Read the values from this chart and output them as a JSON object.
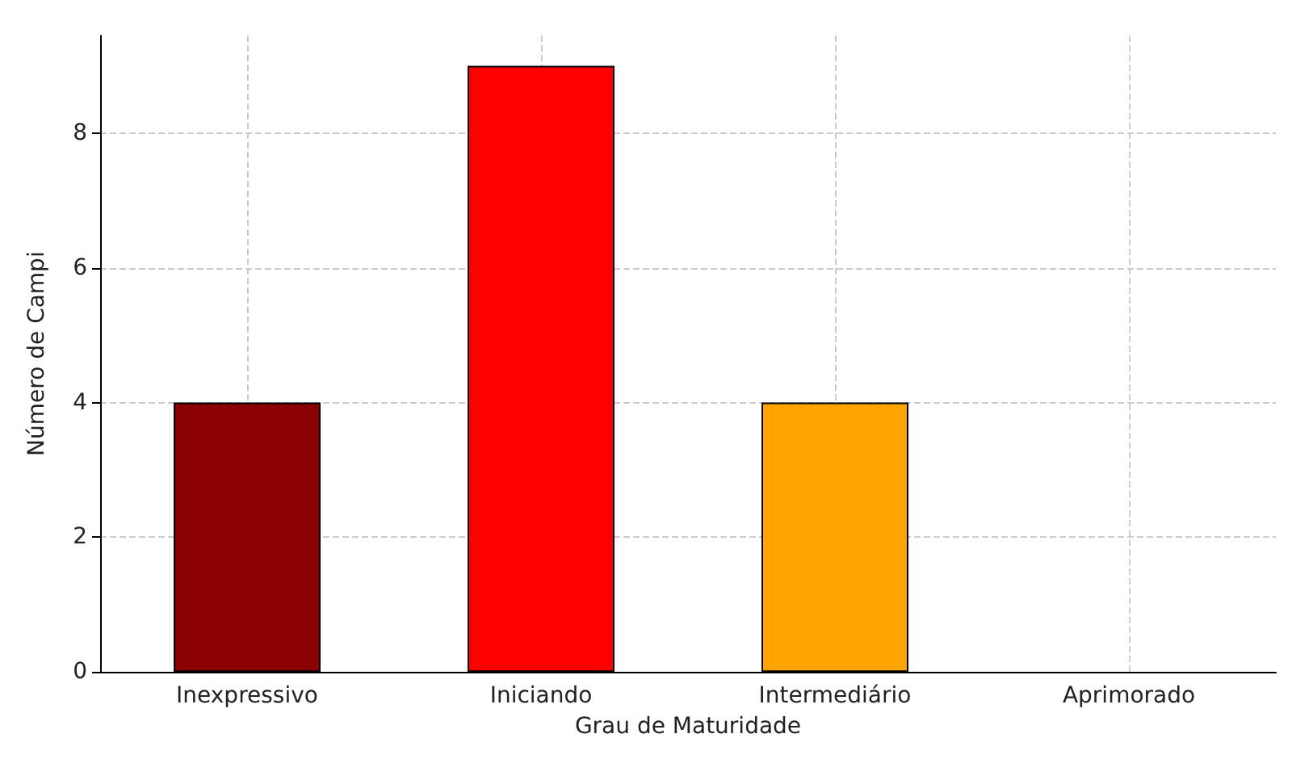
{
  "chart_data": {
    "type": "bar",
    "xlabel": "Grau de Maturidade",
    "ylabel": "Número de Campi",
    "categories": [
      "Inexpressivo",
      "Iniciando",
      "Intermediário",
      "Aprimorado"
    ],
    "values": [
      4,
      9,
      4,
      0
    ],
    "colors": [
      "#8b0000",
      "#ff0000",
      "#ffa500",
      null
    ],
    "ylim": [
      0,
      9.45
    ],
    "yticks": [
      0,
      2,
      4,
      6,
      8
    ],
    "grid": true
  }
}
